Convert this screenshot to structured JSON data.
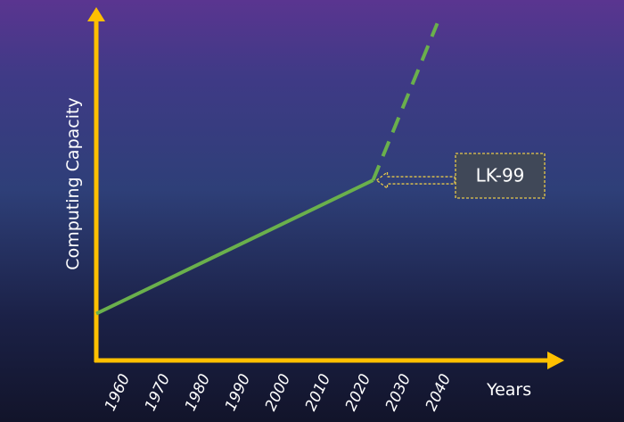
{
  "chart_data": {
    "type": "line",
    "xlabel": "Years",
    "ylabel": "Computing Capacity",
    "x_ticks": [
      "1960",
      "1970",
      "1980",
      "1990",
      "2000",
      "2010",
      "2020",
      "2030",
      "2040"
    ],
    "xlim": [
      1956,
      2055
    ],
    "ylim": [
      0,
      100
    ],
    "series": [
      {
        "style": "solid",
        "color": "#6ab04c",
        "points": [
          [
            1956,
            14
          ],
          [
            2025,
            54
          ]
        ]
      },
      {
        "style": "dashed",
        "color": "#6ab04c",
        "points": [
          [
            2025,
            54
          ],
          [
            2041,
            101
          ]
        ]
      }
    ],
    "annotations": [
      {
        "text": "LK-99",
        "points_to": [
          2025,
          54
        ]
      }
    ],
    "axis_color": "#ffc000",
    "grid": false
  }
}
